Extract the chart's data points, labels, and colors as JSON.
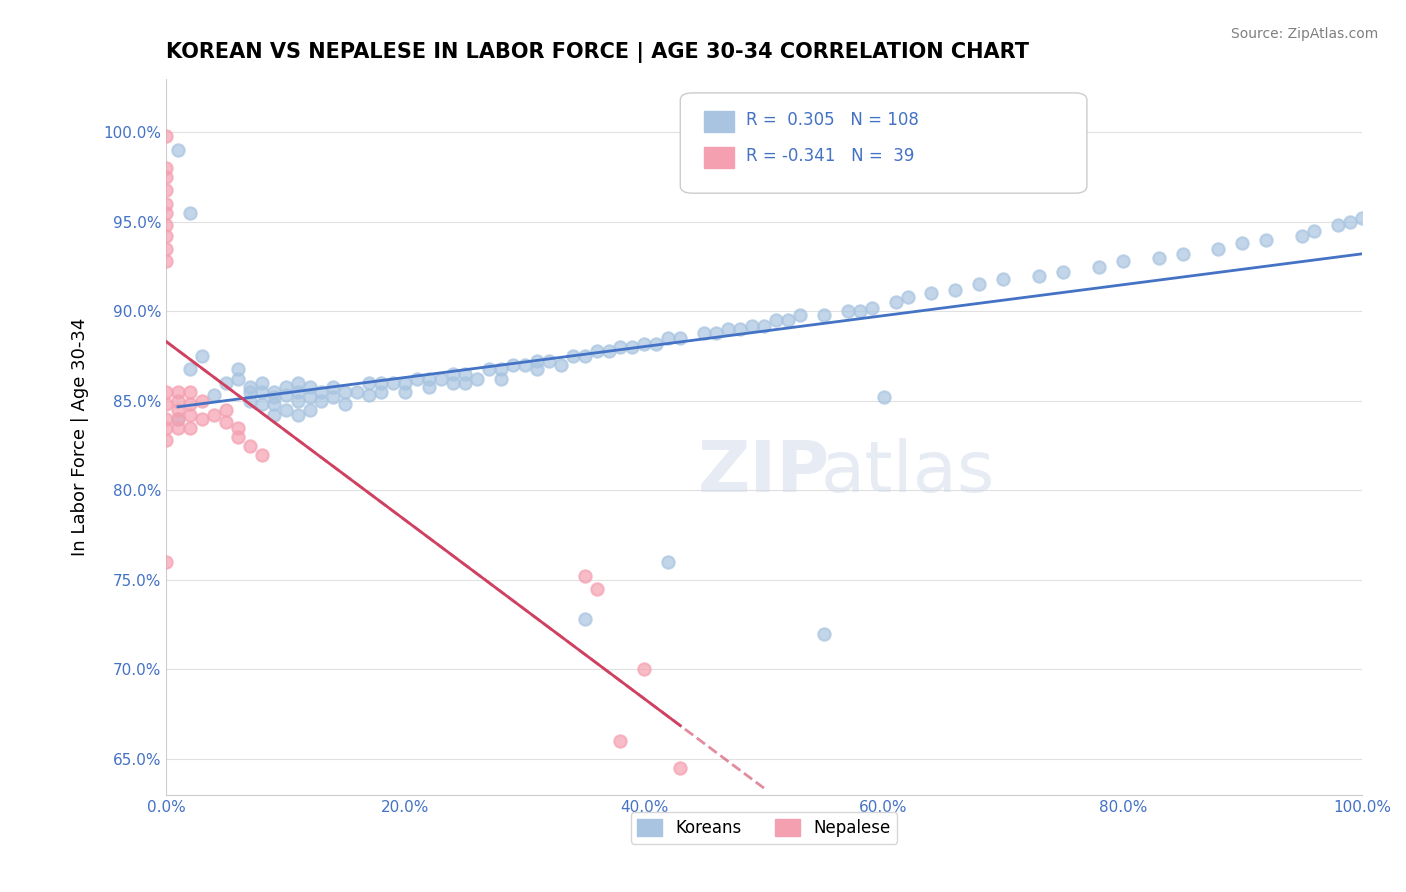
{
  "title": "KOREAN VS NEPALESE IN LABOR FORCE | AGE 30-34 CORRELATION CHART",
  "source": "Source: ZipAtlas.com",
  "xlabel": "",
  "ylabel": "In Labor Force | Age 30-34",
  "xlim": [
    0,
    1.0
  ],
  "ylim": [
    0.63,
    1.03
  ],
  "xticks": [
    0.0,
    0.2,
    0.4,
    0.6,
    0.8,
    1.0
  ],
  "xticklabels": [
    "0.0%",
    "20.0%",
    "40.0%",
    "60.0%",
    "80.0%",
    "100.0%"
  ],
  "yticks": [
    0.65,
    0.7,
    0.75,
    0.8,
    0.85,
    0.9,
    0.95,
    1.0
  ],
  "yticklabels": [
    "65.0%",
    "70.0%",
    "75.0%",
    "80.0%",
    "85.0%",
    "90.0%",
    "95.0%",
    "100.0%"
  ],
  "korean_R": 0.305,
  "korean_N": 108,
  "nepalese_R": -0.341,
  "nepalese_N": 39,
  "korean_color": "#a8c4e0",
  "nepalese_color": "#f4a0b0",
  "korean_line_color": "#4472c4",
  "nepalese_line_color": "#d04060",
  "grid_color": "#e0e0e0",
  "watermark": "ZIPatlas",
  "legend_korean": "Koreans",
  "legend_nepalese": "Nepalese",
  "korean_x": [
    0.02,
    0.04,
    0.05,
    0.06,
    0.06,
    0.07,
    0.07,
    0.07,
    0.08,
    0.08,
    0.08,
    0.09,
    0.09,
    0.09,
    0.09,
    0.1,
    0.1,
    0.1,
    0.11,
    0.11,
    0.11,
    0.11,
    0.12,
    0.12,
    0.12,
    0.13,
    0.13,
    0.14,
    0.14,
    0.15,
    0.15,
    0.16,
    0.17,
    0.17,
    0.18,
    0.18,
    0.19,
    0.2,
    0.2,
    0.21,
    0.22,
    0.22,
    0.23,
    0.24,
    0.24,
    0.25,
    0.25,
    0.26,
    0.27,
    0.28,
    0.28,
    0.29,
    0.3,
    0.31,
    0.31,
    0.32,
    0.33,
    0.34,
    0.35,
    0.36,
    0.37,
    0.38,
    0.39,
    0.4,
    0.41,
    0.42,
    0.43,
    0.45,
    0.46,
    0.47,
    0.48,
    0.49,
    0.5,
    0.51,
    0.52,
    0.53,
    0.55,
    0.57,
    0.58,
    0.59,
    0.61,
    0.62,
    0.64,
    0.66,
    0.68,
    0.7,
    0.73,
    0.75,
    0.78,
    0.8,
    0.83,
    0.85,
    0.88,
    0.9,
    0.92,
    0.95,
    0.96,
    0.98,
    0.99,
    1.0,
    0.01,
    0.01,
    0.02,
    0.03,
    0.6,
    0.35,
    0.42,
    0.55
  ],
  "korean_y": [
    0.868,
    0.853,
    0.86,
    0.868,
    0.862,
    0.855,
    0.85,
    0.858,
    0.86,
    0.855,
    0.848,
    0.855,
    0.852,
    0.848,
    0.842,
    0.858,
    0.853,
    0.845,
    0.86,
    0.855,
    0.85,
    0.842,
    0.858,
    0.852,
    0.845,
    0.855,
    0.85,
    0.858,
    0.852,
    0.855,
    0.848,
    0.855,
    0.86,
    0.853,
    0.86,
    0.855,
    0.86,
    0.86,
    0.855,
    0.862,
    0.862,
    0.858,
    0.862,
    0.865,
    0.86,
    0.865,
    0.86,
    0.862,
    0.868,
    0.868,
    0.862,
    0.87,
    0.87,
    0.872,
    0.868,
    0.872,
    0.87,
    0.875,
    0.875,
    0.878,
    0.878,
    0.88,
    0.88,
    0.882,
    0.882,
    0.885,
    0.885,
    0.888,
    0.888,
    0.89,
    0.89,
    0.892,
    0.892,
    0.895,
    0.895,
    0.898,
    0.898,
    0.9,
    0.9,
    0.902,
    0.905,
    0.908,
    0.91,
    0.912,
    0.915,
    0.918,
    0.92,
    0.922,
    0.925,
    0.928,
    0.93,
    0.932,
    0.935,
    0.938,
    0.94,
    0.942,
    0.945,
    0.948,
    0.95,
    0.952,
    0.99,
    0.84,
    0.955,
    0.875,
    0.852,
    0.728,
    0.76,
    0.72
  ],
  "nepalese_x": [
    0.0,
    0.0,
    0.0,
    0.0,
    0.0,
    0.0,
    0.0,
    0.0,
    0.0,
    0.0,
    0.0,
    0.0,
    0.0,
    0.0,
    0.0,
    0.0,
    0.01,
    0.01,
    0.01,
    0.01,
    0.01,
    0.02,
    0.02,
    0.02,
    0.02,
    0.03,
    0.03,
    0.04,
    0.05,
    0.05,
    0.06,
    0.06,
    0.07,
    0.08,
    0.35,
    0.36,
    0.38,
    0.4,
    0.43
  ],
  "nepalese_y": [
    0.998,
    0.98,
    0.975,
    0.968,
    0.96,
    0.955,
    0.948,
    0.942,
    0.935,
    0.928,
    0.855,
    0.848,
    0.84,
    0.835,
    0.828,
    0.76,
    0.855,
    0.85,
    0.845,
    0.84,
    0.835,
    0.855,
    0.848,
    0.842,
    0.835,
    0.85,
    0.84,
    0.842,
    0.845,
    0.838,
    0.835,
    0.83,
    0.825,
    0.82,
    0.752,
    0.745,
    0.66,
    0.7,
    0.645
  ]
}
